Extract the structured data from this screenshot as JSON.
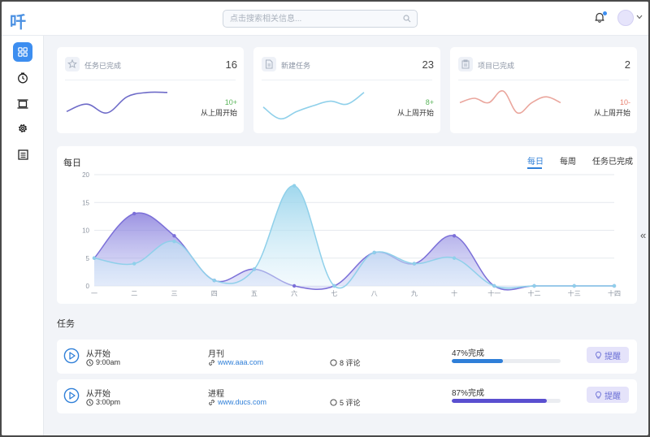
{
  "header": {
    "logo_text": "吀",
    "search_placeholder": "点击搜索相关信息...",
    "icons": [
      "search-icon",
      "bell-icon",
      "chevron-down-icon"
    ],
    "accent_color": "#3d8ef0"
  },
  "sidebar": {
    "items": [
      {
        "name": "dashboard",
        "icon": "grid-icon",
        "active": true
      },
      {
        "name": "tasks",
        "icon": "clock-icon",
        "active": false
      },
      {
        "name": "projects",
        "icon": "film-icon",
        "active": false
      },
      {
        "name": "settings",
        "icon": "gear-icon",
        "active": false
      },
      {
        "name": "reports",
        "icon": "document-icon",
        "active": false
      }
    ]
  },
  "stats": [
    {
      "label": "任务已完成",
      "value": "16",
      "delta": "10+",
      "since": "从上周开始",
      "color": "#6e6bc8",
      "delta_color": "#5bb55b",
      "icon": "star-icon",
      "spark": [
        0.3,
        0.55,
        0.25,
        0.8,
        0.95,
        0.95
      ]
    },
    {
      "label": "新建任务",
      "value": "23",
      "delta": "8+",
      "since": "从上周开始",
      "color": "#8fd0ea",
      "delta_color": "#5bb55b",
      "icon": "file-icon",
      "spark": [
        0.45,
        0.05,
        0.3,
        0.5,
        0.65,
        0.55,
        0.95
      ]
    },
    {
      "label": "项目已完成",
      "value": "2",
      "delta": "10-",
      "since": "从上周开始",
      "color": "#eaa69d",
      "delta_color": "#e8806f",
      "icon": "clipboard-icon",
      "spark": [
        0.6,
        0.75,
        0.6,
        1.0,
        0.25,
        0.6,
        0.8,
        0.6
      ]
    }
  ],
  "daily": {
    "title": "每日",
    "tabs": [
      {
        "label": "每日",
        "active": true
      },
      {
        "label": "每周",
        "active": false
      },
      {
        "label": "任务已完成",
        "active": false
      }
    ]
  },
  "chart_data": {
    "type": "area",
    "categories": [
      "一",
      "二",
      "三",
      "四",
      "五",
      "六",
      "七",
      "八",
      "九",
      "十",
      "十一",
      "十二",
      "十三",
      "十四"
    ],
    "ylim": [
      0,
      20
    ],
    "yticks": [
      0,
      5,
      10,
      15,
      20
    ],
    "grid": true,
    "series": [
      {
        "values": [
          5,
          13,
          9,
          1,
          3,
          0,
          0,
          6,
          4,
          9,
          0,
          0,
          0,
          0
        ],
        "color": "#7b6fd8"
      },
      {
        "values": [
          5,
          4,
          8,
          1,
          3,
          18,
          0,
          6,
          4,
          5,
          0,
          0,
          0,
          0
        ],
        "color": "#8fd0ea"
      }
    ]
  },
  "tasks": {
    "title": "任务",
    "items": [
      {
        "status": "从开始",
        "time": "9:00am",
        "name": "月刊",
        "link": "www.aaa.com",
        "comments": "8 评论",
        "progress_label": "47%完成",
        "progress": 47,
        "bar_color": "#2f7fd8",
        "button": "提醒"
      },
      {
        "status": "从开始",
        "time": "3:00pm",
        "name": "进程",
        "link": "www.ducs.com",
        "comments": "5 评论",
        "progress_label": "87%完成",
        "progress": 87,
        "bar_color": "#5a4fd0",
        "button": "提醒"
      }
    ]
  },
  "collapse_label": "«"
}
